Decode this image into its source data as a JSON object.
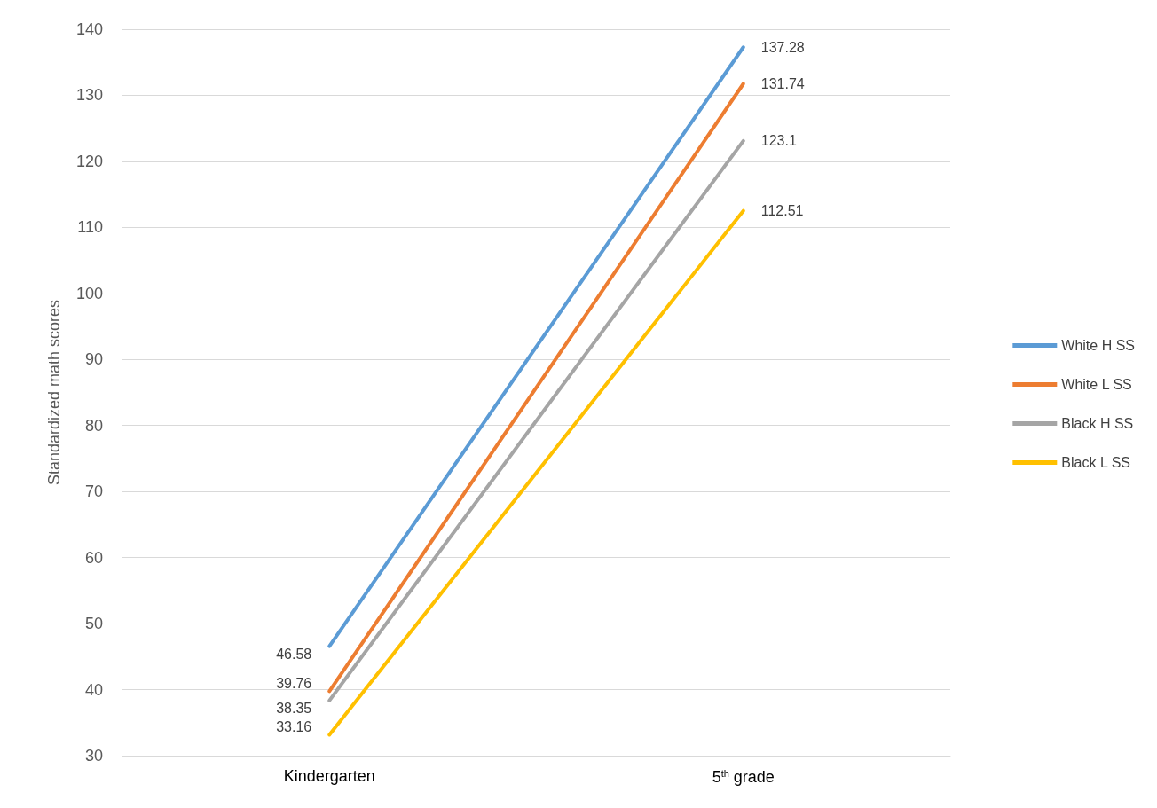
{
  "chart_data": {
    "type": "line",
    "ylabel": "Standardized math scores",
    "categories": [
      "Kindergarten",
      "5$^{th}$ grade"
    ],
    "series": [
      {
        "name": "White H SS",
        "color": "#5b9bd5",
        "values": [
          46.58,
          137.28
        ]
      },
      {
        "name": "White L SS",
        "color": "#ed7d31",
        "values": [
          39.76,
          131.74
        ]
      },
      {
        "name": "Black H SS",
        "color": "#a5a5a5",
        "values": [
          38.35,
          123.1
        ]
      },
      {
        "name": "Black L SS",
        "color": "#ffc000",
        "values": [
          33.16,
          112.51
        ]
      }
    ],
    "ylim": [
      30,
      140
    ],
    "yticks": [
      30,
      40,
      50,
      60,
      70,
      80,
      90,
      100,
      110,
      120,
      130,
      140
    ],
    "grid": "y",
    "legend": "right",
    "marker": "none",
    "line_style": "solid",
    "data_labels": true
  }
}
